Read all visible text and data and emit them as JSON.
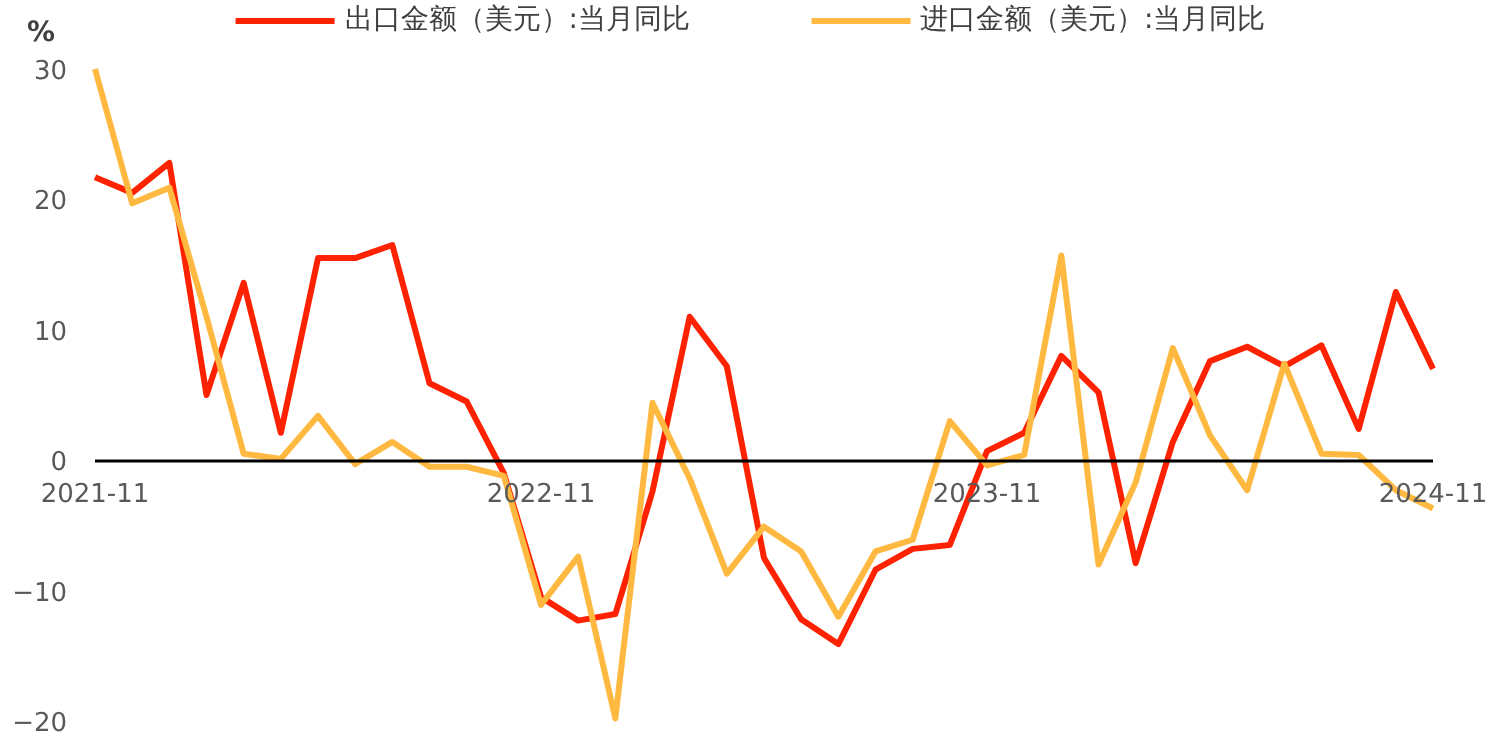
{
  "chart_data": {
    "type": "line",
    "ylabel": "%",
    "x": [
      "2021-11",
      "2021-12",
      "2022-01",
      "2022-02",
      "2022-03",
      "2022-04",
      "2022-05",
      "2022-06",
      "2022-07",
      "2022-08",
      "2022-09",
      "2022-10",
      "2022-11",
      "2022-12",
      "2023-01",
      "2023-02",
      "2023-03",
      "2023-04",
      "2023-05",
      "2023-06",
      "2023-07",
      "2023-08",
      "2023-09",
      "2023-10",
      "2023-11",
      "2023-12",
      "2024-01",
      "2024-02",
      "2024-03",
      "2024-04",
      "2024-05",
      "2024-06",
      "2024-07",
      "2024-08",
      "2024-09",
      "2024-10",
      "2024-11"
    ],
    "series": [
      {
        "name": "出口金额（美元）:当月同比",
        "color": "#ff2200",
        "values": [
          21.7,
          20.5,
          22.8,
          5.0,
          13.6,
          2.1,
          15.5,
          15.5,
          16.5,
          5.9,
          4.5,
          -1.0,
          -10.5,
          -12.3,
          -11.8,
          -2.4,
          11.0,
          7.2,
          -7.5,
          -12.2,
          -14.1,
          -8.4,
          -6.8,
          -6.5,
          0.7,
          2.1,
          8.0,
          5.2,
          -7.9,
          1.4,
          7.6,
          8.7,
          7.2,
          8.8,
          2.4,
          12.9,
          7.0
        ]
      },
      {
        "name": "进口金额（美元）:当月同比",
        "color": "#ffb940",
        "values": [
          30.0,
          19.7,
          20.9,
          11.0,
          0.5,
          0.1,
          3.4,
          -0.3,
          1.4,
          -0.5,
          -0.5,
          -1.2,
          -11.1,
          -7.4,
          -19.8,
          4.4,
          -1.4,
          -8.7,
          -5.1,
          -7.0,
          -12.0,
          -7.0,
          -6.1,
          3.0,
          -0.4,
          0.4,
          15.7,
          -8.0,
          -1.7,
          8.6,
          1.9,
          -2.3,
          7.4,
          0.5,
          0.4,
          -2.3,
          -3.7
        ]
      }
    ],
    "xlim": [
      "2021-11",
      "2024-11"
    ],
    "xticks": [
      "2021-11",
      "2022-11",
      "2023-11",
      "2024-11"
    ],
    "ylim": [
      -20,
      30
    ],
    "yticks": [
      -20,
      -10,
      0,
      10,
      20,
      30
    ],
    "grid": false,
    "legend": "top",
    "marker": "none",
    "line_style": "solid"
  }
}
